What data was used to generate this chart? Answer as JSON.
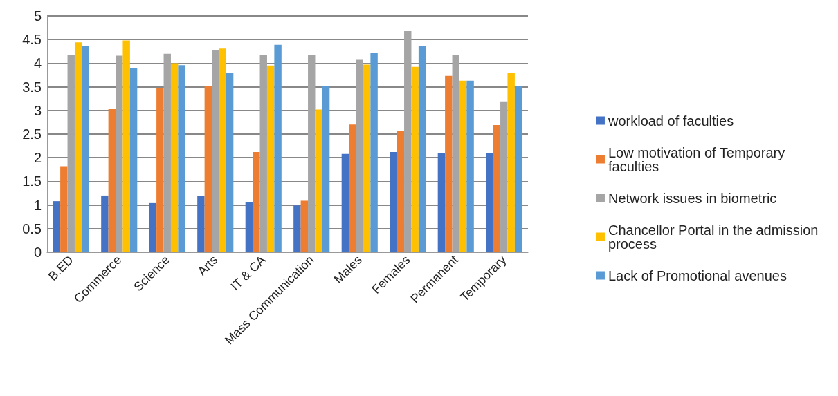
{
  "chart_data": {
    "type": "bar",
    "categories": [
      "B.ED",
      "Commerce",
      "Science",
      "Arts",
      "IT & CA",
      "Mass Communication",
      "Males",
      "Females",
      "Permanent",
      "Temporary"
    ],
    "series": [
      {
        "name": "workload of faculties",
        "color": "#4472c4",
        "values": [
          1.08,
          1.2,
          1.04,
          1.19,
          1.06,
          0.99,
          2.08,
          2.12,
          2.1,
          2.09
        ]
      },
      {
        "name": "Low motivation of Temporary faculties",
        "color": "#ed7d31",
        "values": [
          1.82,
          3.03,
          3.47,
          3.51,
          2.12,
          1.09,
          2.7,
          2.57,
          3.73,
          2.69
        ]
      },
      {
        "name": "Network issues in biometric",
        "color": "#a5a5a5",
        "values": [
          4.17,
          4.16,
          4.2,
          4.27,
          4.18,
          4.17,
          4.07,
          4.68,
          4.17,
          3.19
        ]
      },
      {
        "name": "Chancellor Portal in the admission process",
        "color": "#ffc000",
        "values": [
          4.44,
          4.48,
          4.0,
          4.31,
          3.95,
          3.02,
          3.97,
          3.92,
          3.63,
          3.8
        ]
      },
      {
        "name": "Lack of Promotional avenues",
        "color": "#5b9bd5",
        "values": [
          4.37,
          3.89,
          3.96,
          3.8,
          4.39,
          3.51,
          4.22,
          4.36,
          3.63,
          3.51
        ]
      }
    ],
    "ylim": [
      0,
      5
    ],
    "yticks": [
      0,
      0.5,
      1,
      1.5,
      2,
      2.5,
      3,
      3.5,
      4,
      4.5,
      5
    ],
    "grid": "y",
    "legend": "right"
  }
}
